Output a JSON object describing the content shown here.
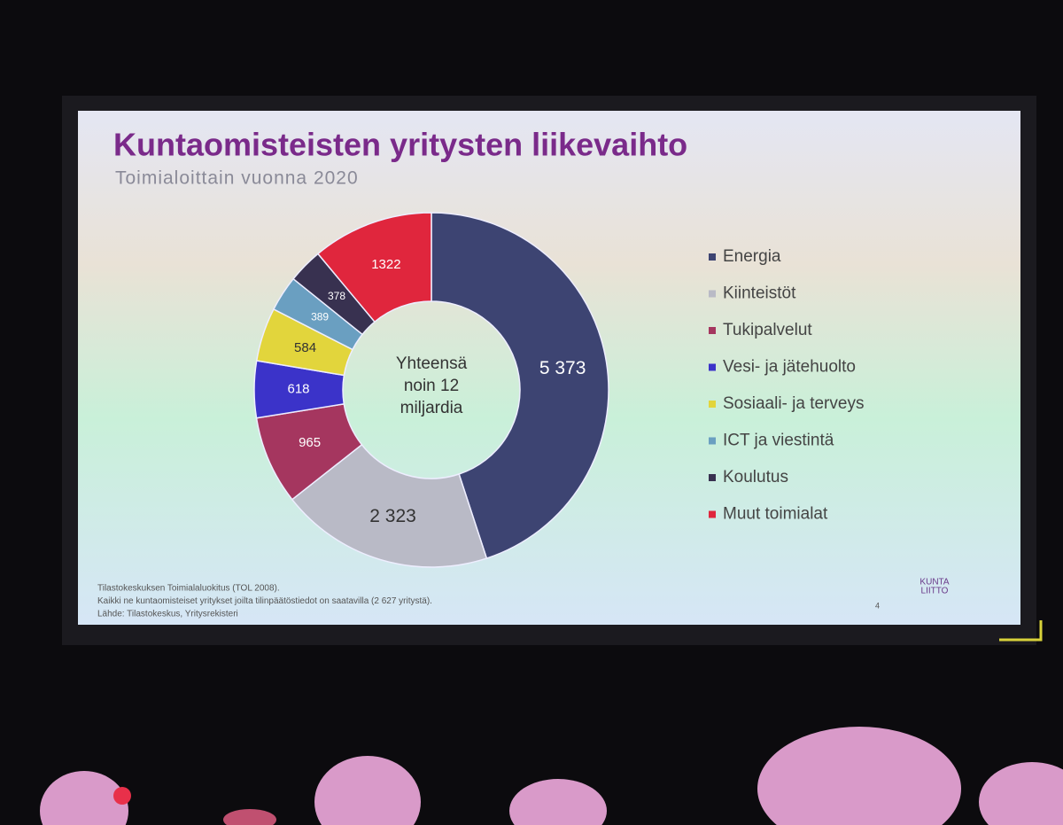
{
  "chart_data": {
    "type": "donut",
    "title": "Kuntaomisteisten yritysten liikevaihto",
    "subtitle": "Toimialoittain vuonna 2020",
    "categories": [
      "Energia",
      "Kiinteistöt",
      "Tukipalvelut",
      "Vesi- ja jätehuolto",
      "Sosiaali- ja terveys",
      "ICT ja viestintä",
      "Koulutus",
      "Muut toimialat"
    ],
    "values": [
      5373,
      2323,
      965,
      618,
      584,
      389,
      378,
      1322
    ],
    "value_labels": [
      "5 373",
      "2 323",
      "965",
      "618",
      "584",
      "389",
      "378",
      "1322"
    ],
    "colors": [
      "#3d4472",
      "#b9bac6",
      "#a5365f",
      "#3b33c9",
      "#e2d53c",
      "#6a9fc1",
      "#383150",
      "#e0263d"
    ],
    "center_text": [
      "Yhteensä",
      "noin 12",
      "miljardia"
    ],
    "footnotes": [
      "Tilastokeskuksen Toimialaluokitus (TOL 2008).",
      "Kaikki ne kuntaomisteiset yritykset joilta tilinpäätöstiedot on saatavilla (2 627 yritystä).",
      "Lähde: Tilastokeskus, Yritysrekisteri"
    ],
    "logo": [
      "KUNTA",
      "LIITTO"
    ],
    "page_number": "4"
  }
}
